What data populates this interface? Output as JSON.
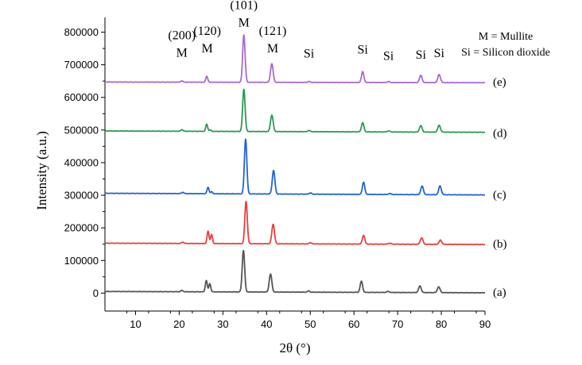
{
  "chart_data": {
    "type": "line",
    "xlabel": "2θ (°)",
    "ylabel": "Intensity (a.u.)",
    "xlim": [
      3,
      90
    ],
    "ylim": [
      -55000,
      845000
    ],
    "x_ticks": [
      10,
      20,
      30,
      40,
      50,
      60,
      70,
      80,
      90
    ],
    "y_ticks": [
      0,
      100000,
      200000,
      300000,
      400000,
      500000,
      600000,
      700000,
      800000
    ],
    "y_tick_labels": [
      "0",
      "100000",
      "200000",
      "300000",
      "400000",
      "500000",
      "600000",
      "700000",
      "800000"
    ],
    "grid": false,
    "legend_text": [
      "M = Mullite",
      "Si = Silicon dioxide"
    ],
    "series": [
      {
        "label": "(a)",
        "color": "#555555",
        "baseline_start": 5000,
        "baseline_end": 1000,
        "label_value": 3000,
        "peaks": [
          [
            20.6,
            4000,
            0.25
          ],
          [
            26.2,
            35000,
            0.22
          ],
          [
            27.0,
            25000,
            0.22
          ],
          [
            34.7,
            127000,
            0.28
          ],
          [
            40.9,
            55000,
            0.3
          ],
          [
            49.6,
            4000,
            0.25
          ],
          [
            61.7,
            34000,
            0.28
          ],
          [
            67.8,
            3000,
            0.3
          ],
          [
            75.1,
            20000,
            0.3
          ],
          [
            79.4,
            18000,
            0.3
          ]
        ]
      },
      {
        "label": "(b)",
        "color": "#e8403c",
        "baseline_start": 153000,
        "baseline_end": 149000,
        "label_value": 152000,
        "peaks": [
          [
            20.8,
            4000,
            0.25
          ],
          [
            26.6,
            38000,
            0.22
          ],
          [
            27.4,
            28000,
            0.22
          ],
          [
            35.3,
            130000,
            0.28
          ],
          [
            41.5,
            60000,
            0.3
          ],
          [
            50.0,
            4000,
            0.25
          ],
          [
            62.2,
            27000,
            0.28
          ],
          [
            68.2,
            3000,
            0.3
          ],
          [
            75.5,
            20000,
            0.3
          ],
          [
            79.8,
            13000,
            0.3
          ]
        ]
      },
      {
        "label": "(c)",
        "color": "#2064d8",
        "baseline_start": 306000,
        "baseline_end": 301000,
        "label_value": 302000,
        "peaks": [
          [
            20.8,
            4000,
            0.25
          ],
          [
            26.6,
            20000,
            0.22
          ],
          [
            27.4,
            6000,
            0.22
          ],
          [
            35.2,
            168000,
            0.28
          ],
          [
            41.6,
            72000,
            0.3
          ],
          [
            50.0,
            4000,
            0.25
          ],
          [
            62.2,
            37000,
            0.28
          ],
          [
            68.2,
            3000,
            0.3
          ],
          [
            75.6,
            26000,
            0.3
          ],
          [
            79.7,
            27000,
            0.3
          ]
        ]
      },
      {
        "label": "(d)",
        "color": "#2a9a52",
        "baseline_start": 497000,
        "baseline_end": 493000,
        "label_value": 491000,
        "peaks": [
          [
            20.6,
            5000,
            0.25
          ],
          [
            26.3,
            22000,
            0.22
          ],
          [
            27.1,
            4000,
            0.22
          ],
          [
            34.8,
            129000,
            0.28
          ],
          [
            41.2,
            51000,
            0.3
          ],
          [
            49.7,
            4000,
            0.25
          ],
          [
            62.0,
            28000,
            0.28
          ],
          [
            67.9,
            3000,
            0.3
          ],
          [
            75.3,
            20000,
            0.3
          ],
          [
            79.5,
            21000,
            0.3
          ]
        ]
      },
      {
        "label": "(e)",
        "color": "#a86ad2",
        "baseline_start": 647000,
        "baseline_end": 645000,
        "label_value": 648000,
        "peaks": [
          [
            20.6,
            4000,
            0.25
          ],
          [
            26.3,
            19000,
            0.22
          ],
          [
            34.8,
            145000,
            0.28
          ],
          [
            41.2,
            57000,
            0.3
          ],
          [
            49.7,
            3000,
            0.25
          ],
          [
            62.0,
            33000,
            0.28
          ],
          [
            67.9,
            3000,
            0.3
          ],
          [
            75.3,
            22000,
            0.3
          ],
          [
            79.5,
            25000,
            0.3
          ]
        ]
      }
    ],
    "annotations": [
      {
        "lines": [
          "(200)",
          "M"
        ],
        "x": 20.6,
        "y": 725000
      },
      {
        "lines": [
          "(120)",
          "M"
        ],
        "x": 26.4,
        "y": 738000
      },
      {
        "lines": [
          "(101)",
          "M"
        ],
        "x": 34.8,
        "y": 817000
      },
      {
        "lines": [
          "(121)",
          "M"
        ],
        "x": 41.4,
        "y": 738000
      },
      {
        "lines": [
          "Si"
        ],
        "x": 49.7,
        "y": 722000
      },
      {
        "lines": [
          "Si"
        ],
        "x": 62.0,
        "y": 734000
      },
      {
        "lines": [
          "Si"
        ],
        "x": 67.9,
        "y": 715000
      },
      {
        "lines": [
          "Si"
        ],
        "x": 75.3,
        "y": 719000
      },
      {
        "lines": [
          "Si"
        ],
        "x": 79.5,
        "y": 723000
      }
    ]
  }
}
